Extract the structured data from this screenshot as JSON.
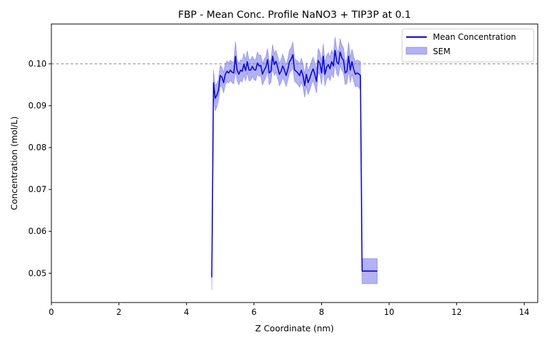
{
  "chart_data": {
    "type": "line",
    "title": "FBP - Mean Conc. Profile NaNO3 + TIP3P at 0.1",
    "xlabel": "Z Coordinate (nm)",
    "ylabel": "Concentration (mol/L)",
    "xlim": [
      0,
      14.4
    ],
    "ylim": [
      0.043,
      0.1095
    ],
    "xticks": [
      0,
      2,
      4,
      6,
      8,
      10,
      12,
      14
    ],
    "yticks": [
      0.05,
      0.06,
      0.07,
      0.08,
      0.09,
      0.1
    ],
    "ytick_labels": [
      "0.05",
      "0.06",
      "0.07",
      "0.08",
      "0.09",
      "0.10"
    ],
    "reference_line": {
      "y": 0.1,
      "style": "dashed",
      "color": "#808080"
    },
    "legend": {
      "placement": "top-right",
      "entries": [
        "Mean Concentration",
        "SEM"
      ]
    },
    "colors": {
      "line": "#0000ee",
      "band": "#6666ee"
    },
    "series": [
      {
        "name": "Mean Concentration",
        "x": [
          4.75,
          4.8,
          4.85,
          4.9,
          4.95,
          5.0,
          5.05,
          5.1,
          5.15,
          5.2,
          5.25,
          5.3,
          5.35,
          5.4,
          5.45,
          5.5,
          5.55,
          5.6,
          5.65,
          5.7,
          5.75,
          5.8,
          5.85,
          5.9,
          5.95,
          6.0,
          6.05,
          6.1,
          6.15,
          6.2,
          6.25,
          6.3,
          6.35,
          6.4,
          6.45,
          6.5,
          6.55,
          6.6,
          6.65,
          6.7,
          6.75,
          6.8,
          6.85,
          6.9,
          6.95,
          7.0,
          7.05,
          7.1,
          7.15,
          7.2,
          7.25,
          7.3,
          7.35,
          7.4,
          7.45,
          7.5,
          7.55,
          7.6,
          7.65,
          7.7,
          7.75,
          7.8,
          7.85,
          7.9,
          7.95,
          8.0,
          8.05,
          8.1,
          8.15,
          8.2,
          8.25,
          8.3,
          8.35,
          8.4,
          8.45,
          8.5,
          8.55,
          8.6,
          8.65,
          8.7,
          8.75,
          8.8,
          8.85,
          8.9,
          8.95,
          9.0,
          9.05,
          9.1,
          9.15,
          9.2,
          9.25,
          9.3,
          9.35,
          9.4,
          9.45,
          9.5,
          9.55,
          9.6,
          9.65
        ],
        "y": [
          0.049,
          0.0955,
          0.0918,
          0.0925,
          0.0938,
          0.0972,
          0.0968,
          0.0955,
          0.0975,
          0.0982,
          0.0978,
          0.0985,
          0.098,
          0.0978,
          0.1018,
          0.0985,
          0.0975,
          0.0985,
          0.0982,
          0.0999,
          0.0984,
          0.1005,
          0.0985,
          0.0985,
          0.0994,
          0.0986,
          0.0985,
          0.1002,
          0.0995,
          0.0996,
          0.0975,
          0.0985,
          0.0992,
          0.101,
          0.0978,
          0.0982,
          0.1018,
          0.0998,
          0.1006,
          0.0992,
          0.0975,
          0.0982,
          0.0995,
          0.0985,
          0.0972,
          0.0986,
          0.1005,
          0.1011,
          0.1022,
          0.0985,
          0.0982,
          0.0978,
          0.0972,
          0.0985,
          0.0972,
          0.0948,
          0.0975,
          0.0955,
          0.0965,
          0.0978,
          0.0988,
          0.0975,
          0.0958,
          0.1008,
          0.1001,
          0.0978,
          0.1018,
          0.0975,
          0.0992,
          0.0998,
          0.0988,
          0.1005,
          0.0995,
          0.1032,
          0.1005,
          0.0999,
          0.1028,
          0.1015,
          0.1008,
          0.0978,
          0.0982,
          0.1018,
          0.0985,
          0.1005,
          0.0988,
          0.0975,
          0.0978,
          0.0976,
          0.0972,
          0.0505,
          0.0505,
          0.0505,
          0.0505,
          0.0505,
          0.0505,
          0.0505,
          0.0505,
          0.0505,
          0.0505
        ]
      }
    ],
    "band": {
      "name": "SEM",
      "half_width": [
        0.003,
        0.003,
        0.003,
        0.0028,
        0.0025,
        0.0024,
        0.0024,
        0.0024,
        0.0025,
        0.0025,
        0.0024,
        0.0024,
        0.0025,
        0.0026,
        0.0035,
        0.0025,
        0.0025,
        0.0025,
        0.0025,
        0.0026,
        0.0025,
        0.0026,
        0.0025,
        0.0025,
        0.0024,
        0.0024,
        0.0025,
        0.0026,
        0.0025,
        0.0025,
        0.0026,
        0.0026,
        0.0025,
        0.0026,
        0.0028,
        0.0026,
        0.0028,
        0.0026,
        0.0026,
        0.0026,
        0.0027,
        0.0027,
        0.0028,
        0.0026,
        0.0026,
        0.0026,
        0.0027,
        0.0028,
        0.003,
        0.0027,
        0.0027,
        0.0028,
        0.0028,
        0.0028,
        0.0028,
        0.0028,
        0.0028,
        0.0028,
        0.0028,
        0.0027,
        0.0028,
        0.0028,
        0.0028,
        0.0028,
        0.0027,
        0.0028,
        0.003,
        0.0028,
        0.0028,
        0.0028,
        0.0028,
        0.0028,
        0.0028,
        0.0032,
        0.0029,
        0.0029,
        0.0032,
        0.003,
        0.003,
        0.0028,
        0.0029,
        0.0034,
        0.003,
        0.003,
        0.0029,
        0.003,
        0.0031,
        0.0032,
        0.0033,
        0.003,
        0.003,
        0.003,
        0.003,
        0.003,
        0.003,
        0.003,
        0.003,
        0.003,
        0.003
      ]
    }
  }
}
